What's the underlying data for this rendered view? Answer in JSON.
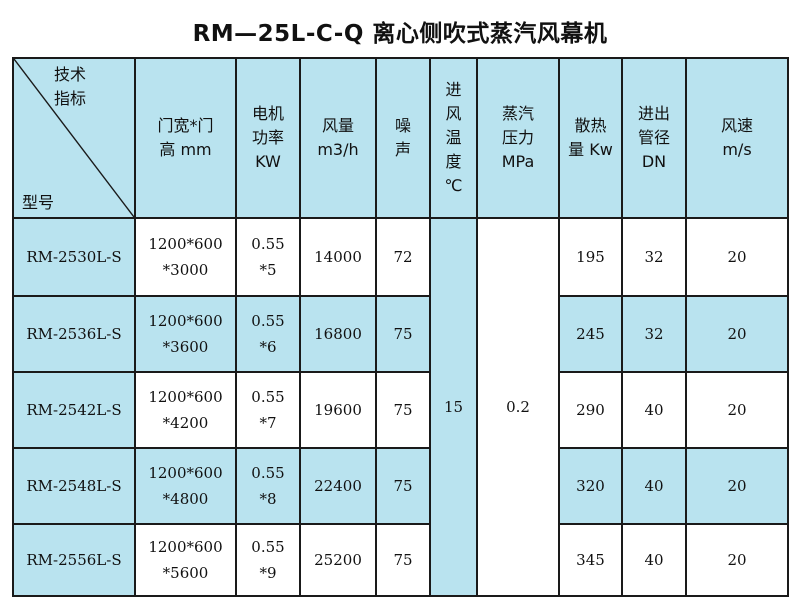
{
  "title": "RM—25L-C-Q 离心侧吹式蒸汽风幕机",
  "header": {
    "corner_top_line1": "技术",
    "corner_top_line2": "指标",
    "corner_bottom": "型号",
    "door_line1": "门宽*门",
    "door_line2": "高 mm",
    "power_line1": "电机",
    "power_line2": "功率",
    "power_line3": "KW",
    "airflow_line1": "风量",
    "airflow_line2": "m3/h",
    "noise_line1": "噪",
    "noise_line2": "声",
    "temp_line1": "进",
    "temp_line2": "风",
    "temp_line3": "温",
    "temp_line4": "度",
    "temp_line5": "℃",
    "steam_line1": "蒸汽",
    "steam_line2": "压力",
    "steam_line3": "MPa",
    "heat_line1": "散热",
    "heat_line2": "量 Kw",
    "pipe_line1": "进出",
    "pipe_line2": "管径",
    "pipe_line3": "DN",
    "speed_line1": "风速",
    "speed_line2": "m/s"
  },
  "shared": {
    "inlet_temp": "15",
    "steam_pressure": "0.2"
  },
  "rows": [
    {
      "model": "RM-2530L-S",
      "size1": "1200*600",
      "size2": "*3000",
      "power1": "0.55",
      "power2": "*5",
      "airflow": "14000",
      "noise": "72",
      "heat": "195",
      "pipe": "32",
      "speed": "20"
    },
    {
      "model": "RM-2536L-S",
      "size1": "1200*600",
      "size2": "*3600",
      "power1": "0.55",
      "power2": "*6",
      "airflow": "16800",
      "noise": "75",
      "heat": "245",
      "pipe": "32",
      "speed": "20"
    },
    {
      "model": "RM-2542L-S",
      "size1": "1200*600",
      "size2": "*4200",
      "power1": "0.55",
      "power2": "*7",
      "airflow": "19600",
      "noise": "75",
      "heat": "290",
      "pipe": "40",
      "speed": "20"
    },
    {
      "model": "RM-2548L-S",
      "size1": "1200*600",
      "size2": "*4800",
      "power1": "0.55",
      "power2": "*8",
      "airflow": "22400",
      "noise": "75",
      "heat": "320",
      "pipe": "40",
      "speed": "20"
    },
    {
      "model": "RM-2556L-S",
      "size1": "1200*600",
      "size2": "*5600",
      "power1": "0.55",
      "power2": "*9",
      "airflow": "25200",
      "noise": "75",
      "heat": "345",
      "pipe": "40",
      "speed": "20"
    }
  ],
  "colors": {
    "cell_blue": "#b9e3ef",
    "border": "#1a1a1a"
  }
}
